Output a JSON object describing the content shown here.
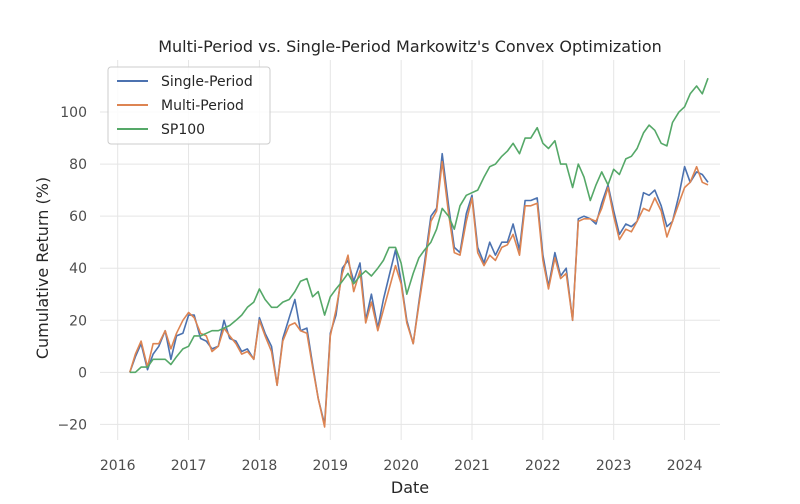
{
  "chart_data": {
    "type": "line",
    "title": "Multi-Period vs. Single-Period Markowitz's Convex Optimization",
    "xlabel": "Date",
    "ylabel": "Cumulative Return (%)",
    "xlim": [
      2015.75,
      2024.5
    ],
    "ylim": [
      -26,
      120
    ],
    "x_ticks": [
      2016,
      2017,
      2018,
      2019,
      2020,
      2021,
      2022,
      2023,
      2024
    ],
    "x_tick_labels": [
      "2016",
      "2017",
      "2018",
      "2019",
      "2020",
      "2021",
      "2022",
      "2023",
      "2024"
    ],
    "y_ticks": [
      -20,
      0,
      20,
      40,
      60,
      80,
      100
    ],
    "y_tick_labels": [
      "−20",
      "0",
      "20",
      "40",
      "60",
      "80",
      "100"
    ],
    "grid": true,
    "legend_position": "top-left",
    "background": "#ffffff",
    "grid_color": "#e5e5e5",
    "series": [
      {
        "name": "Single-Period",
        "color": "#4c72b0",
        "x": [
          2016.17,
          2016.25,
          2016.33,
          2016.42,
          2016.5,
          2016.58,
          2016.67,
          2016.75,
          2016.83,
          2016.92,
          2017.0,
          2017.08,
          2017.17,
          2017.25,
          2017.33,
          2017.42,
          2017.5,
          2017.58,
          2017.67,
          2017.75,
          2017.83,
          2017.92,
          2018.0,
          2018.08,
          2018.17,
          2018.25,
          2018.33,
          2018.42,
          2018.5,
          2018.58,
          2018.67,
          2018.75,
          2018.83,
          2018.92,
          2019.0,
          2019.08,
          2019.17,
          2019.25,
          2019.33,
          2019.42,
          2019.5,
          2019.58,
          2019.67,
          2019.75,
          2019.83,
          2019.92,
          2020.0,
          2020.08,
          2020.17,
          2020.25,
          2020.33,
          2020.42,
          2020.5,
          2020.58,
          2020.67,
          2020.75,
          2020.83,
          2020.92,
          2021.0,
          2021.08,
          2021.17,
          2021.25,
          2021.33,
          2021.42,
          2021.5,
          2021.58,
          2021.67,
          2021.75,
          2021.83,
          2021.92,
          2022.0,
          2022.08,
          2022.17,
          2022.25,
          2022.33,
          2022.42,
          2022.5,
          2022.58,
          2022.67,
          2022.75,
          2022.83,
          2022.92,
          2023.0,
          2023.08,
          2023.17,
          2023.25,
          2023.33,
          2023.42,
          2023.5,
          2023.58,
          2023.67,
          2023.75,
          2023.83,
          2023.92,
          2024.0,
          2024.08,
          2024.17,
          2024.25,
          2024.33
        ],
        "values": [
          0,
          6,
          11,
          1,
          7,
          10,
          16,
          5,
          14,
          15,
          22,
          22,
          13,
          12,
          9,
          10,
          20,
          13,
          12,
          8,
          9,
          5,
          21,
          15,
          10,
          -5,
          13,
          21,
          28,
          16,
          17,
          3,
          -10,
          -20,
          15,
          22,
          40,
          43,
          35,
          42,
          20,
          30,
          17,
          28,
          37,
          47,
          35,
          20,
          11,
          27,
          42,
          60,
          63,
          84,
          64,
          48,
          46,
          61,
          68,
          48,
          42,
          50,
          45,
          50,
          50,
          57,
          47,
          66,
          66,
          67,
          45,
          33,
          46,
          37,
          40,
          20,
          59,
          60,
          59,
          57,
          65,
          72,
          62,
          53,
          57,
          56,
          58,
          69,
          68,
          70,
          64,
          56,
          58,
          68,
          79,
          73,
          77,
          76,
          73
        ]
      },
      {
        "name": "Multi-Period",
        "color": "#dd8452",
        "x": [
          2016.17,
          2016.25,
          2016.33,
          2016.42,
          2016.5,
          2016.58,
          2016.67,
          2016.75,
          2016.83,
          2016.92,
          2017.0,
          2017.08,
          2017.17,
          2017.25,
          2017.33,
          2017.42,
          2017.5,
          2017.58,
          2017.67,
          2017.75,
          2017.83,
          2017.92,
          2018.0,
          2018.08,
          2018.17,
          2018.25,
          2018.33,
          2018.42,
          2018.5,
          2018.58,
          2018.67,
          2018.75,
          2018.83,
          2018.92,
          2019.0,
          2019.08,
          2019.17,
          2019.25,
          2019.33,
          2019.42,
          2019.5,
          2019.58,
          2019.67,
          2019.75,
          2019.83,
          2019.92,
          2020.0,
          2020.08,
          2020.17,
          2020.25,
          2020.33,
          2020.42,
          2020.5,
          2020.58,
          2020.67,
          2020.75,
          2020.83,
          2020.92,
          2021.0,
          2021.08,
          2021.17,
          2021.25,
          2021.33,
          2021.42,
          2021.5,
          2021.58,
          2021.67,
          2021.75,
          2021.83,
          2021.92,
          2022.0,
          2022.08,
          2022.17,
          2022.25,
          2022.33,
          2022.42,
          2022.5,
          2022.58,
          2022.67,
          2022.75,
          2022.83,
          2022.92,
          2023.0,
          2023.08,
          2023.17,
          2023.25,
          2023.33,
          2023.42,
          2023.5,
          2023.58,
          2023.67,
          2023.75,
          2023.83,
          2023.92,
          2024.0,
          2024.08,
          2024.17,
          2024.25,
          2024.33
        ],
        "values": [
          0,
          7,
          12,
          2,
          11,
          11,
          16,
          9,
          15,
          20,
          23,
          21,
          15,
          14,
          8,
          10,
          17,
          14,
          11,
          7,
          8,
          5,
          20,
          14,
          8,
          -5,
          12,
          18,
          19,
          16,
          15,
          2,
          -10,
          -21,
          14,
          24,
          38,
          45,
          31,
          39,
          19,
          27,
          16,
          24,
          32,
          41,
          34,
          19,
          11,
          26,
          40,
          58,
          62,
          81,
          61,
          46,
          45,
          58,
          67,
          46,
          41,
          45,
          43,
          48,
          49,
          53,
          45,
          64,
          64,
          65,
          43,
          32,
          44,
          36,
          38,
          20,
          58,
          59,
          59,
          58,
          63,
          71,
          60,
          51,
          55,
          54,
          58,
          63,
          62,
          67,
          62,
          52,
          58,
          65,
          71,
          73,
          79,
          73,
          72
        ]
      },
      {
        "name": "SP100",
        "color": "#55a868",
        "x": [
          2016.17,
          2016.25,
          2016.33,
          2016.42,
          2016.5,
          2016.58,
          2016.67,
          2016.75,
          2016.83,
          2016.92,
          2017.0,
          2017.08,
          2017.17,
          2017.25,
          2017.33,
          2017.42,
          2017.5,
          2017.58,
          2017.67,
          2017.75,
          2017.83,
          2017.92,
          2018.0,
          2018.08,
          2018.17,
          2018.25,
          2018.33,
          2018.42,
          2018.5,
          2018.58,
          2018.67,
          2018.75,
          2018.83,
          2018.92,
          2019.0,
          2019.08,
          2019.17,
          2019.25,
          2019.33,
          2019.42,
          2019.5,
          2019.58,
          2019.67,
          2019.75,
          2019.83,
          2019.92,
          2020.0,
          2020.08,
          2020.17,
          2020.25,
          2020.33,
          2020.42,
          2020.5,
          2020.58,
          2020.67,
          2020.75,
          2020.83,
          2020.92,
          2021.0,
          2021.08,
          2021.17,
          2021.25,
          2021.33,
          2021.42,
          2021.5,
          2021.58,
          2021.67,
          2021.75,
          2021.83,
          2021.92,
          2022.0,
          2022.08,
          2022.17,
          2022.25,
          2022.33,
          2022.42,
          2022.5,
          2022.58,
          2022.67,
          2022.75,
          2022.83,
          2022.92,
          2023.0,
          2023.08,
          2023.17,
          2023.25,
          2023.33,
          2023.42,
          2023.5,
          2023.58,
          2023.67,
          2023.75,
          2023.83,
          2023.92,
          2024.0,
          2024.08,
          2024.17,
          2024.25,
          2024.33
        ],
        "values": [
          0,
          0,
          2,
          2,
          5,
          5,
          5,
          3,
          6,
          9,
          10,
          14,
          14,
          15,
          16,
          16,
          17,
          18,
          20,
          22,
          25,
          27,
          32,
          28,
          25,
          25,
          27,
          28,
          31,
          35,
          36,
          29,
          31,
          22,
          29,
          32,
          35,
          38,
          34,
          37,
          39,
          37,
          40,
          43,
          48,
          48,
          42,
          30,
          38,
          44,
          47,
          50,
          55,
          63,
          60,
          55,
          64,
          68,
          69,
          70,
          75,
          79,
          80,
          83,
          85,
          88,
          84,
          90,
          90,
          94,
          88,
          86,
          89,
          80,
          80,
          71,
          80,
          75,
          66,
          72,
          77,
          72,
          78,
          76,
          82,
          83,
          86,
          92,
          95,
          93,
          88,
          87,
          96,
          100,
          102,
          107,
          110,
          107,
          113
        ]
      }
    ]
  }
}
